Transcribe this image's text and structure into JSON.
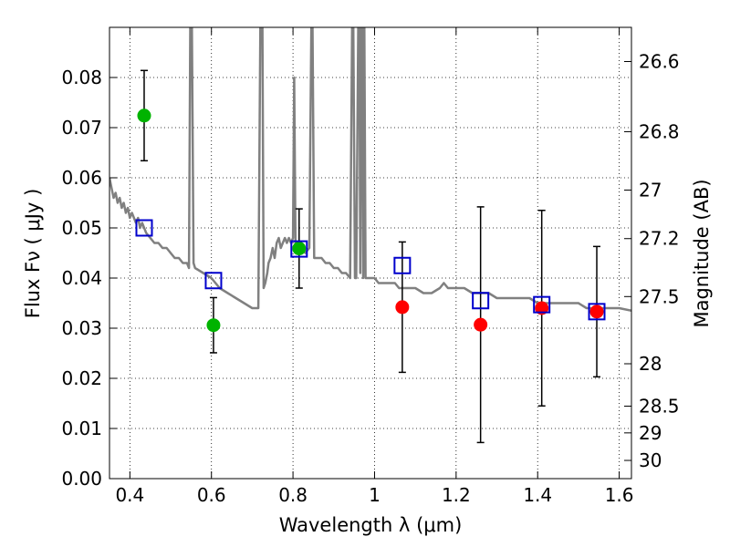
{
  "chart_data": {
    "type": "scatter",
    "xlabel": "Wavelength  λ (μm)",
    "ylabel": "Flux  Fν  ( μJy )",
    "y2label": "Magnitude (AB)",
    "xlim": [
      0.35,
      1.63
    ],
    "ylim": [
      0.0,
      0.09
    ],
    "x_ticks": [
      0.4,
      0.6,
      0.8,
      1.0,
      1.2,
      1.4,
      1.6
    ],
    "x_tick_labels": [
      "0.4",
      "0.6",
      "0.8",
      "1",
      "1.2",
      "1.4",
      "1.6"
    ],
    "y_ticks": [
      0.0,
      0.01,
      0.02,
      0.03,
      0.04,
      0.05,
      0.06,
      0.07,
      0.08
    ],
    "y_tick_labels": [
      "0.00",
      "0.01",
      "0.02",
      "0.03",
      "0.04",
      "0.05",
      "0.06",
      "0.07",
      "0.08"
    ],
    "y2_ticks": [
      26.6,
      26.8,
      27.0,
      27.2,
      27.5,
      28.0,
      28.5,
      29.0,
      30.0
    ],
    "y2_tick_labels": [
      "26.6",
      "26.8",
      "27",
      "27.2",
      "27.5",
      "28",
      "28.5",
      "29",
      "30"
    ],
    "grid": true,
    "colors": {
      "model_line": "#808080",
      "green_points": "#00b300",
      "red_points": "#ff0000",
      "model_photometry": "#0000cc",
      "error_bars": "#000000"
    },
    "series": [
      {
        "type": "line",
        "x": [
          0.35,
          0.355,
          0.36,
          0.365,
          0.37,
          0.375,
          0.38,
          0.385,
          0.39,
          0.395,
          0.4,
          0.405,
          0.41,
          0.415,
          0.42,
          0.425,
          0.43,
          0.435,
          0.44,
          0.45,
          0.46,
          0.47,
          0.48,
          0.49,
          0.5,
          0.51,
          0.52,
          0.53,
          0.54,
          0.545,
          0.548,
          0.552,
          0.556,
          0.56,
          0.58,
          0.6,
          0.62,
          0.64,
          0.66,
          0.68,
          0.7,
          0.715,
          0.72,
          0.725,
          0.728,
          0.732,
          0.737,
          0.74,
          0.745,
          0.75,
          0.755,
          0.76,
          0.765,
          0.77,
          0.775,
          0.78,
          0.785,
          0.79,
          0.795,
          0.8,
          0.803,
          0.806,
          0.81,
          0.815,
          0.82,
          0.83,
          0.84,
          0.845,
          0.848,
          0.852,
          0.86,
          0.87,
          0.88,
          0.89,
          0.9,
          0.91,
          0.92,
          0.93,
          0.94,
          0.945,
          0.948,
          0.952,
          0.955,
          0.96,
          0.963,
          0.965,
          0.968,
          0.97,
          0.972,
          0.975,
          0.978,
          0.98,
          0.985,
          0.99,
          1.0,
          1.01,
          1.02,
          1.03,
          1.04,
          1.05,
          1.06,
          1.07,
          1.08,
          1.09,
          1.1,
          1.12,
          1.14,
          1.16,
          1.17,
          1.18,
          1.2,
          1.22,
          1.24,
          1.26,
          1.28,
          1.3,
          1.32,
          1.34,
          1.36,
          1.38,
          1.4,
          1.42,
          1.44,
          1.46,
          1.48,
          1.5,
          1.52,
          1.54,
          1.56,
          1.58,
          1.6,
          1.63
        ],
        "y": [
          0.06,
          0.058,
          0.056,
          0.057,
          0.055,
          0.056,
          0.054,
          0.055,
          0.053,
          0.054,
          0.052,
          0.053,
          0.052,
          0.051,
          0.052,
          0.05,
          0.051,
          0.05,
          0.049,
          0.048,
          0.047,
          0.047,
          0.046,
          0.046,
          0.045,
          0.044,
          0.044,
          0.043,
          0.043,
          0.042,
          0.09,
          0.09,
          0.043,
          0.042,
          0.041,
          0.04,
          0.038,
          0.037,
          0.036,
          0.035,
          0.034,
          0.034,
          0.09,
          0.09,
          0.038,
          0.039,
          0.041,
          0.043,
          0.044,
          0.046,
          0.044,
          0.047,
          0.048,
          0.046,
          0.047,
          0.048,
          0.047,
          0.048,
          0.047,
          0.048,
          0.08,
          0.047,
          0.046,
          0.045,
          0.046,
          0.045,
          0.046,
          0.09,
          0.09,
          0.044,
          0.044,
          0.044,
          0.043,
          0.043,
          0.042,
          0.042,
          0.041,
          0.041,
          0.04,
          0.09,
          0.09,
          0.04,
          0.04,
          0.09,
          0.09,
          0.041,
          0.09,
          0.09,
          0.04,
          0.09,
          0.04,
          0.04,
          0.04,
          0.04,
          0.04,
          0.039,
          0.039,
          0.039,
          0.039,
          0.039,
          0.038,
          0.038,
          0.038,
          0.038,
          0.038,
          0.037,
          0.037,
          0.038,
          0.039,
          0.038,
          0.038,
          0.038,
          0.037,
          0.037,
          0.037,
          0.036,
          0.036,
          0.036,
          0.036,
          0.036,
          0.035,
          0.035,
          0.035,
          0.035,
          0.035,
          0.035,
          0.034,
          0.034,
          0.034,
          0.034,
          0.034,
          0.0335
        ]
      },
      {
        "type": "model_photometry",
        "x": [
          0.435,
          0.605,
          0.815,
          1.068,
          1.26,
          1.41,
          1.545
        ],
        "y": [
          0.05,
          0.0395,
          0.0458,
          0.0425,
          0.0355,
          0.0347,
          0.0333
        ]
      },
      {
        "type": "observed_green",
        "x": [
          0.435,
          0.605,
          0.815
        ],
        "y": [
          0.0724,
          0.0306,
          0.0459
        ],
        "yerr": [
          0.009,
          0.0055,
          0.0079
        ]
      },
      {
        "type": "observed_red",
        "x": [
          1.068,
          1.26,
          1.41,
          1.545
        ],
        "y": [
          0.0342,
          0.0307,
          0.034,
          0.0333
        ],
        "yerr_low": [
          0.013,
          0.0235,
          0.0195,
          0.013
        ],
        "yerr_high": [
          0.013,
          0.0235,
          0.0195,
          0.013
        ]
      }
    ]
  }
}
